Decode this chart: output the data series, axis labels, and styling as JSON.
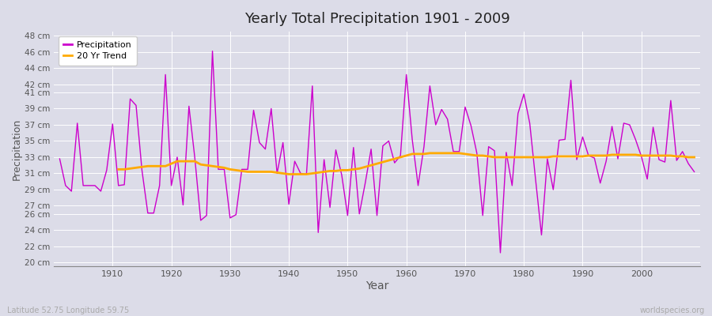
{
  "title": "Yearly Total Precipitation 1901 - 2009",
  "xlabel": "Year",
  "ylabel": "Precipitation",
  "subtitle_left": "Latitude 52.75 Longitude 59.75",
  "subtitle_right": "worldspecies.org",
  "bg_color": "#dcdce8",
  "plot_bg_color": "#dcdce8",
  "precip_color": "#cc00cc",
  "trend_color": "#ffaa00",
  "years": [
    1901,
    1902,
    1903,
    1904,
    1905,
    1906,
    1907,
    1908,
    1909,
    1910,
    1911,
    1912,
    1913,
    1914,
    1915,
    1916,
    1917,
    1918,
    1919,
    1920,
    1921,
    1922,
    1923,
    1924,
    1925,
    1926,
    1927,
    1928,
    1929,
    1930,
    1931,
    1932,
    1933,
    1934,
    1935,
    1936,
    1937,
    1938,
    1939,
    1940,
    1941,
    1942,
    1943,
    1944,
    1945,
    1946,
    1947,
    1948,
    1949,
    1950,
    1951,
    1952,
    1953,
    1954,
    1955,
    1956,
    1957,
    1958,
    1959,
    1960,
    1961,
    1962,
    1963,
    1964,
    1965,
    1966,
    1967,
    1968,
    1969,
    1970,
    1971,
    1972,
    1973,
    1974,
    1975,
    1976,
    1977,
    1978,
    1979,
    1980,
    1981,
    1982,
    1983,
    1984,
    1985,
    1986,
    1987,
    1988,
    1989,
    1990,
    1991,
    1992,
    1993,
    1994,
    1995,
    1996,
    1997,
    1998,
    1999,
    2000,
    2001,
    2002,
    2003,
    2004,
    2005,
    2006,
    2007,
    2008,
    2009
  ],
  "precip": [
    32.8,
    29.5,
    28.8,
    37.2,
    29.5,
    29.5,
    29.5,
    28.8,
    31.4,
    37.1,
    29.5,
    29.6,
    40.2,
    39.4,
    31.4,
    26.1,
    26.1,
    29.5,
    43.2,
    29.5,
    33.0,
    27.1,
    39.3,
    32.9,
    25.2,
    25.8,
    46.1,
    31.5,
    31.5,
    25.5,
    25.9,
    31.5,
    31.5,
    38.8,
    34.8,
    34.0,
    39.0,
    31.0,
    34.8,
    27.2,
    32.5,
    31.0,
    30.9,
    41.8,
    23.7,
    32.7,
    26.8,
    33.9,
    30.8,
    25.8,
    34.2,
    26.0,
    29.8,
    34.0,
    25.8,
    34.4,
    35.0,
    32.3,
    33.2,
    43.2,
    35.2,
    29.5,
    34.3,
    41.8,
    37.0,
    38.9,
    37.7,
    33.7,
    33.7,
    39.2,
    36.9,
    33.5,
    25.8,
    34.3,
    33.8,
    21.2,
    33.6,
    29.5,
    38.4,
    40.8,
    37.2,
    30.2,
    23.4,
    32.8,
    29.0,
    35.1,
    35.2,
    42.5,
    32.7,
    35.5,
    33.2,
    32.9,
    29.8,
    32.5,
    36.8,
    32.8,
    37.2,
    37.0,
    35.2,
    33.1,
    30.3,
    36.7,
    32.7,
    32.4,
    40.0,
    32.6,
    33.7,
    32.2,
    31.2
  ],
  "trend": [
    null,
    null,
    null,
    null,
    null,
    null,
    null,
    null,
    null,
    null,
    31.5,
    31.5,
    31.6,
    31.7,
    31.8,
    31.9,
    31.9,
    31.9,
    31.9,
    32.2,
    32.5,
    32.5,
    32.5,
    32.5,
    32.1,
    32.0,
    31.9,
    31.8,
    31.7,
    31.5,
    31.4,
    31.3,
    31.2,
    31.2,
    31.2,
    31.2,
    31.2,
    31.1,
    31.0,
    30.9,
    30.9,
    30.9,
    30.9,
    31.0,
    31.1,
    31.2,
    31.3,
    31.3,
    31.4,
    31.4,
    31.5,
    31.6,
    31.8,
    32.0,
    32.2,
    32.4,
    32.6,
    32.8,
    33.0,
    33.2,
    33.4,
    33.4,
    33.4,
    33.5,
    33.5,
    33.5,
    33.5,
    33.5,
    33.5,
    33.4,
    33.3,
    33.2,
    33.2,
    33.1,
    33.0,
    33.0,
    33.0,
    33.0,
    33.0,
    33.0,
    33.0,
    33.0,
    33.0,
    33.0,
    33.1,
    33.1,
    33.1,
    33.1,
    33.1,
    33.1,
    33.2,
    33.2,
    33.2,
    33.2,
    33.3,
    33.3,
    33.3,
    33.3,
    33.3,
    33.2,
    33.2,
    33.2,
    33.2,
    33.2,
    33.2,
    33.1,
    33.1,
    33.0,
    33.0
  ],
  "yticks": [
    20,
    22,
    24,
    26,
    27,
    29,
    31,
    33,
    35,
    37,
    39,
    41,
    42,
    44,
    46,
    48
  ],
  "ylim": [
    19.5,
    48.5
  ],
  "xlim": [
    1900,
    2010
  ]
}
